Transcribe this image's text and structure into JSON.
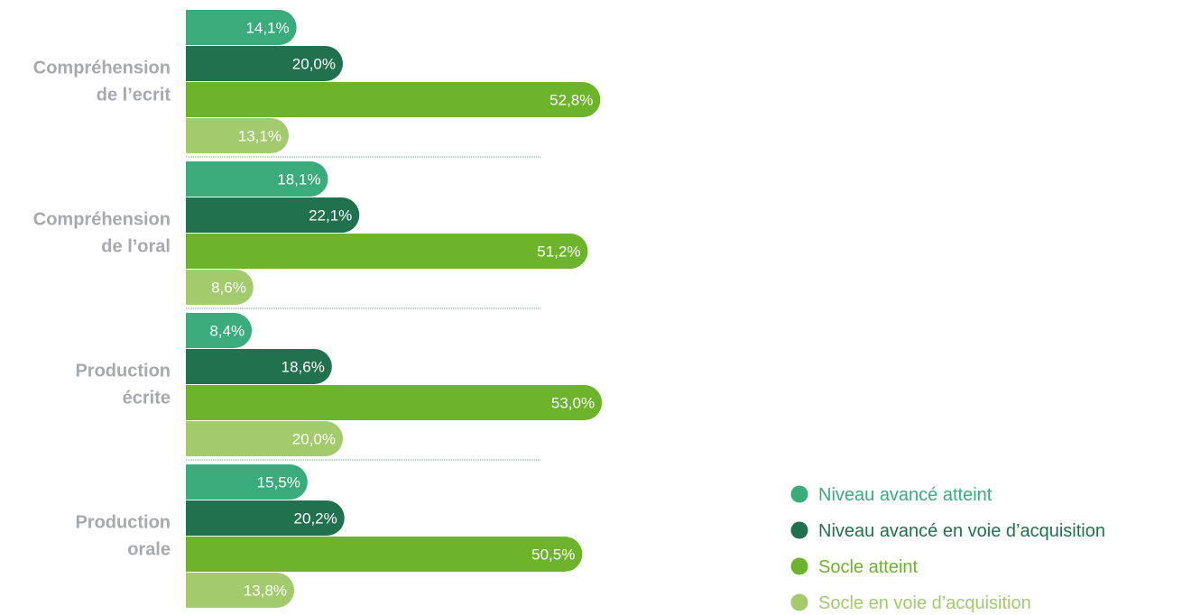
{
  "chart_data": {
    "type": "bar",
    "orientation": "horizontal",
    "title": "",
    "xlabel": "",
    "ylabel": "",
    "xlim": [
      0,
      55
    ],
    "grid": false,
    "legend_position": "bottom-right",
    "categories": [
      [
        "Compréhension",
        "de l’ecrit"
      ],
      [
        "Compréhension",
        "de l’oral"
      ],
      [
        "Production",
        "écrite"
      ],
      [
        "Production",
        "orale"
      ]
    ],
    "series": [
      {
        "name": "Niveau avancé atteint",
        "color": "#3aab7b",
        "values": [
          14.1,
          18.1,
          8.4,
          15.5
        ],
        "labels": [
          "14,1%",
          "18,1%",
          "8,4%",
          "15,5%"
        ]
      },
      {
        "name": "Niveau avancé en voie d’acquisition",
        "color": "#21704e",
        "values": [
          20.0,
          22.1,
          18.6,
          20.2
        ],
        "labels": [
          "20,0%",
          "22,1%",
          "18,6%",
          "20,2%"
        ]
      },
      {
        "name": "Socle atteint",
        "color": "#6db42c",
        "values": [
          52.8,
          51.2,
          53.0,
          50.5
        ],
        "labels": [
          "52,8%",
          "51,2%",
          "53,0%",
          "50,5%"
        ]
      },
      {
        "name": "Socle en voie d’acquisition",
        "color": "#a3cb6e",
        "values": [
          13.1,
          8.6,
          20.0,
          13.8
        ],
        "labels": [
          "13,1%",
          "8,6%",
          "20,0%",
          "13,8%"
        ]
      }
    ]
  }
}
